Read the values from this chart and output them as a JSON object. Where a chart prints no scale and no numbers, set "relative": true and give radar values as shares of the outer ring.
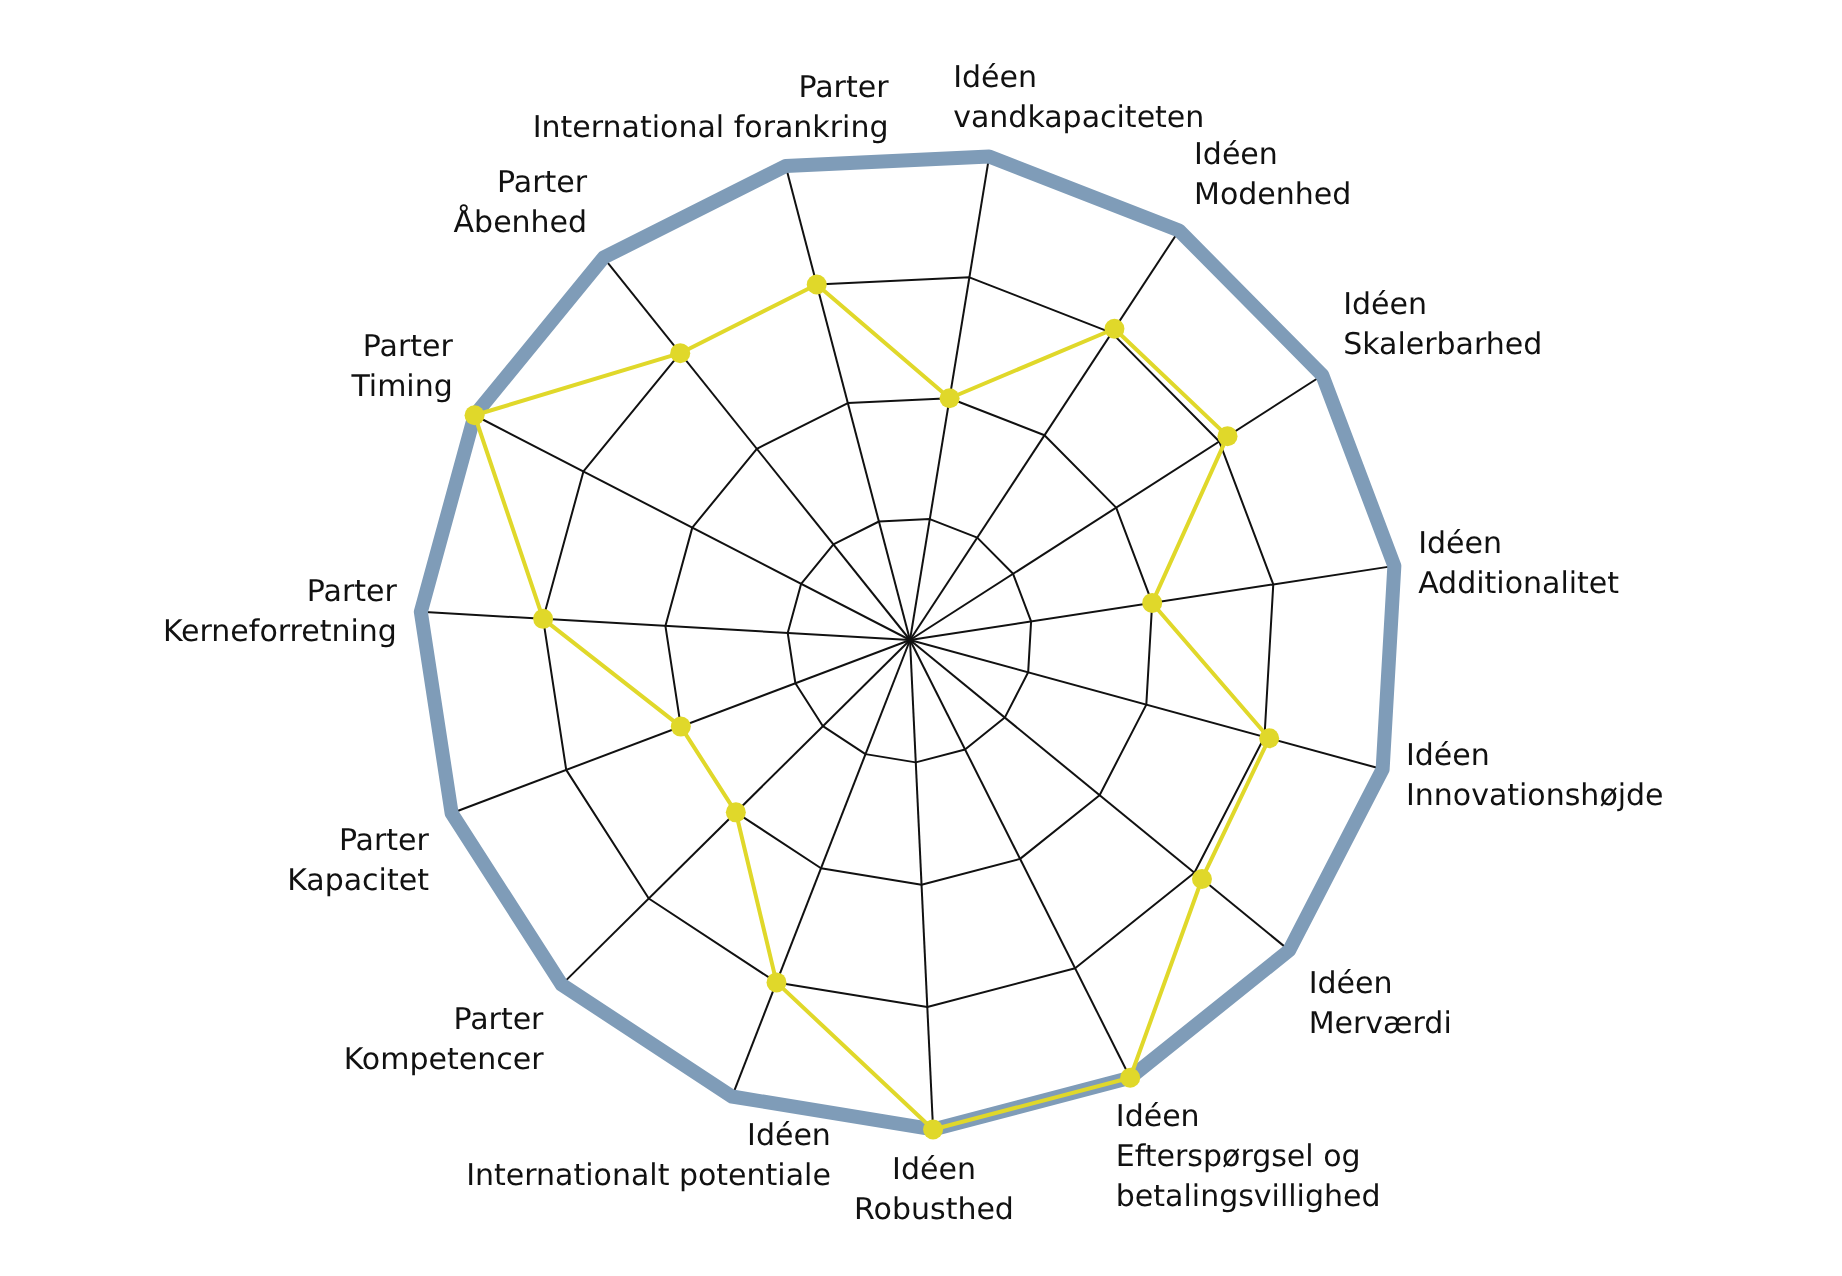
{
  "chart_data": {
    "type": "radar",
    "relative": true,
    "grid": true,
    "marker": "circle",
    "categories": [
      "Idéen\nvandkapaciteten",
      "Idéen\nModenhed",
      "Idéen\nSkalerbarhed",
      "Idéen\nAdditionalitet",
      "Idéen\nInnovationshøjde",
      "Idéen\nMerværdi",
      "Idéen\nEfterspørgsel og\nbetalingsvillighed",
      "Idéen\nRobusthed",
      "Idéen\nInternationalt potentiale",
      "Parter\nKompetencer",
      "Parter\nKapacitet",
      "Parter\nKerneforretning",
      "Parter\nTiming",
      "Parter\nÅbenhed",
      "Parter\nInternational forankring"
    ],
    "series": [
      {
        "color": "#e0d82a",
        "values": [
          0.5,
          0.76,
          0.77,
          0.5,
          0.76,
          0.77,
          1,
          1,
          0.75,
          0.5,
          0.5,
          0.75,
          1,
          0.75,
          0.75
        ]
      }
    ]
  }
}
